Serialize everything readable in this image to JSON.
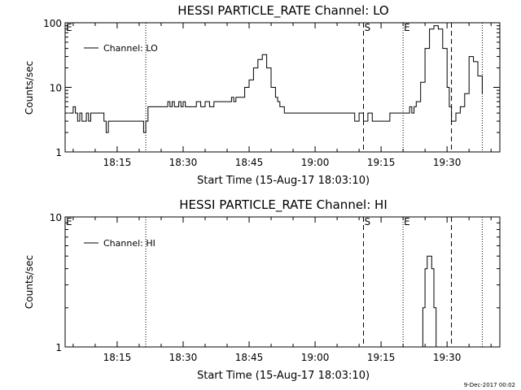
{
  "chart_data": [
    {
      "type": "line",
      "title": "HESSI PARTICLE_RATE Channel: LO",
      "xlabel": "Start Time (15-Aug-17 18:03:10)",
      "ylabel": "Counts/sec",
      "y_scale": "log",
      "ylim": [
        1,
        100
      ],
      "xlim": [
        "18:03:10",
        "19:42:00"
      ],
      "x_ticks": [
        "18:15",
        "18:30",
        "18:45",
        "19:00",
        "19:15",
        "19:30"
      ],
      "y_ticks": [
        "1",
        "10",
        "100"
      ],
      "legend": "top-left",
      "series": [
        {
          "name": "Channel: LO",
          "x": [
            "18:04:00",
            "18:05:00",
            "18:05:30",
            "18:06:00",
            "18:06:30",
            "18:07:00",
            "18:07:30",
            "18:08:00",
            "18:08:30",
            "18:09:00",
            "18:10:00",
            "18:11:00",
            "18:12:00",
            "18:12:30",
            "18:13:00",
            "18:14:00",
            "18:16:00",
            "18:18:00",
            "18:20:00",
            "18:21:00",
            "18:21:30",
            "18:22:00",
            "18:22:30",
            "18:23:00",
            "18:25:00",
            "18:26:00",
            "18:26:30",
            "18:27:00",
            "18:27:30",
            "18:28:00",
            "18:29:00",
            "18:29:30",
            "18:30:00",
            "18:30:30",
            "18:31:00",
            "18:32:00",
            "18:33:00",
            "18:34:00",
            "18:35:00",
            "18:36:00",
            "18:37:00",
            "18:38:00",
            "18:39:00",
            "18:40:00",
            "18:41:00",
            "18:41:30",
            "18:42:00",
            "18:43:00",
            "18:44:00",
            "18:45:00",
            "18:46:00",
            "18:47:00",
            "18:48:00",
            "18:49:00",
            "18:50:00",
            "18:51:00",
            "18:51:30",
            "18:52:00",
            "18:53:00",
            "18:54:00",
            "18:55:00",
            "18:57:00",
            "19:00:00",
            "19:03:00",
            "19:06:00",
            "19:08:00",
            "19:09:00",
            "19:10:00",
            "19:11:00",
            "19:12:00",
            "19:13:00",
            "19:14:00",
            "19:16:00",
            "19:17:00",
            "19:18:00",
            "19:19:00",
            "19:20:00",
            "19:21:00",
            "19:21:30",
            "19:22:00",
            "19:22:30",
            "19:23:00",
            "19:24:00",
            "19:25:00",
            "19:26:00",
            "19:27:00",
            "19:28:00",
            "19:29:00",
            "19:30:00",
            "19:30:30",
            "19:31:00",
            "19:32:00",
            "19:33:00",
            "19:34:00",
            "19:35:00",
            "19:36:00",
            "19:37:00",
            "19:38:00"
          ],
          "y": [
            4,
            5,
            4,
            3,
            4,
            3,
            3,
            4,
            3,
            4,
            4,
            4,
            3,
            2,
            3,
            3,
            3,
            3,
            3,
            2,
            3,
            5,
            5,
            5,
            5,
            5,
            6,
            5,
            6,
            5,
            6,
            5,
            6,
            5,
            5,
            5,
            6,
            5,
            6,
            5,
            6,
            6,
            6,
            6,
            7,
            6,
            7,
            7,
            10,
            13,
            20,
            27,
            32,
            20,
            10,
            7,
            6,
            5,
            4,
            4,
            4,
            4,
            4,
            4,
            4,
            4,
            3,
            4,
            3,
            4,
            3,
            3,
            3,
            4,
            4,
            4,
            4,
            4,
            5,
            4,
            5,
            6,
            12,
            40,
            80,
            90,
            80,
            40,
            10,
            5,
            3,
            4,
            5,
            8,
            30,
            25,
            15,
            8
          ]
        }
      ],
      "annotations": [
        {
          "label": "E",
          "x": "18:03:10",
          "style": "label"
        },
        {
          "label": "",
          "x": "18:21:30",
          "style": "dotted"
        },
        {
          "label": "S",
          "x": "19:11:00",
          "style": "dashed"
        },
        {
          "label": "E",
          "x": "19:20:00",
          "style": "dotted"
        },
        {
          "label": "",
          "x": "19:31:00",
          "style": "dashed"
        },
        {
          "label": "",
          "x": "19:38:00",
          "style": "dotted"
        }
      ]
    },
    {
      "type": "line",
      "title": "HESSI PARTICLE_RATE Channel: HI",
      "xlabel": "Start Time (15-Aug-17 18:03:10)",
      "ylabel": "Counts/sec",
      "y_scale": "log",
      "ylim": [
        1,
        10
      ],
      "xlim": [
        "18:03:10",
        "19:42:00"
      ],
      "x_ticks": [
        "18:15",
        "18:30",
        "18:45",
        "19:00",
        "19:15",
        "19:30"
      ],
      "y_ticks": [
        "1",
        "10"
      ],
      "legend": "top-left",
      "series": [
        {
          "name": "Channel: HI",
          "x": [
            "19:24:00",
            "19:24:30",
            "19:25:00",
            "19:25:30",
            "19:26:00",
            "19:26:30",
            "19:27:00",
            "19:27:30"
          ],
          "y": [
            1,
            2,
            4,
            5,
            5,
            4,
            2,
            1
          ]
        }
      ],
      "annotations": [
        {
          "label": "E",
          "x": "18:03:10",
          "style": "label"
        },
        {
          "label": "",
          "x": "18:21:30",
          "style": "dotted"
        },
        {
          "label": "S",
          "x": "19:11:00",
          "style": "dashed"
        },
        {
          "label": "E",
          "x": "19:20:00",
          "style": "dotted"
        },
        {
          "label": "",
          "x": "19:31:00",
          "style": "dashed"
        },
        {
          "label": "",
          "x": "19:38:00",
          "style": "dotted"
        }
      ]
    }
  ],
  "footer": "9-Dec-2017 00:02"
}
